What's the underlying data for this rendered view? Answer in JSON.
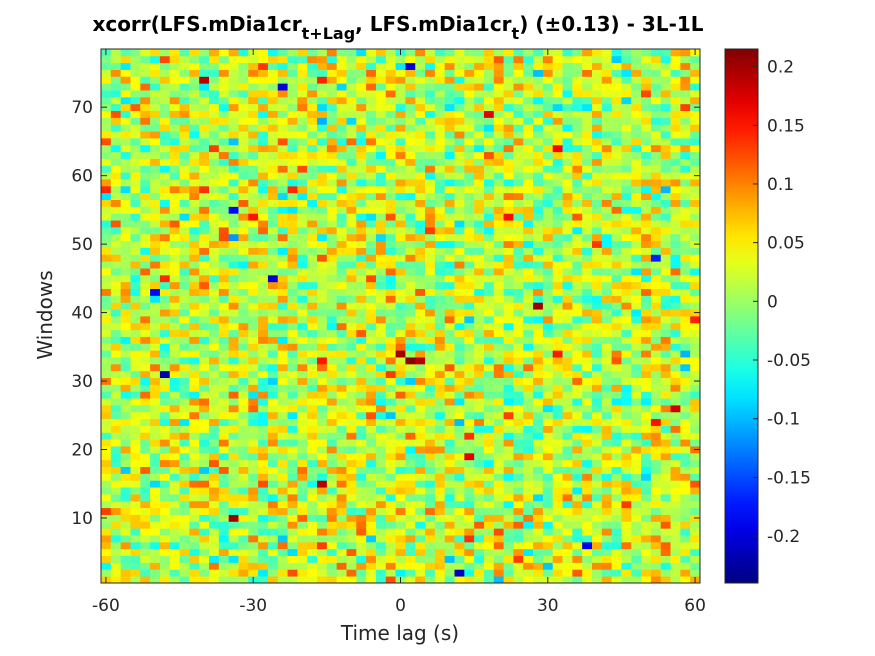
{
  "chart_data": {
    "type": "heatmap",
    "title_parts": {
      "p1": "xcorr(LFS.mDia1cr",
      "sub1": "t+Lag",
      "p2": ", LFS.mDia1cr",
      "sub2": "t",
      "p3": ")  (±0.13) - 3L-1L"
    },
    "xlabel": "Time lag (s)",
    "ylabel": "Windows",
    "x_range": [
      -61,
      61
    ],
    "y_range": [
      0.5,
      78.5
    ],
    "n_rows": 78,
    "n_cols": 61,
    "x_ticks": [
      -60,
      -30,
      0,
      30,
      60
    ],
    "x_tick_labels": [
      "-60",
      "-30",
      "0",
      "30",
      "60"
    ],
    "y_ticks": [
      10,
      20,
      30,
      40,
      50,
      60,
      70
    ],
    "y_tick_labels": [
      "10",
      "20",
      "30",
      "40",
      "50",
      "60",
      "70"
    ],
    "color_range": [
      -0.24,
      0.215
    ],
    "colormap": "jet",
    "colorbar_ticks": [
      0.2,
      0.15,
      0.1,
      0.05,
      0,
      -0.05,
      -0.1,
      -0.15,
      -0.2
    ],
    "colorbar_tick_labels": [
      "0.2",
      "0.15",
      "0.1",
      "0.05",
      "0",
      "-0.05",
      "-0.1",
      "-0.15",
      "-0.2"
    ],
    "value_mean": 0.02,
    "value_spread": 0.05,
    "highlights": [
      {
        "row": 33,
        "col": 30,
        "value": 0.2
      },
      {
        "row": 32,
        "col": 31,
        "value": 0.21
      },
      {
        "row": 32,
        "col": 32,
        "value": 0.19
      },
      {
        "row": 40,
        "col": 44,
        "value": 0.2
      },
      {
        "row": 18,
        "col": 37,
        "value": 0.17
      },
      {
        "row": 14,
        "col": 22,
        "value": 0.19
      },
      {
        "row": 73,
        "col": 10,
        "value": 0.19
      },
      {
        "row": 68,
        "col": 39,
        "value": 0.17
      },
      {
        "row": 63,
        "col": 46,
        "value": 0.16
      },
      {
        "row": 44,
        "col": 17,
        "value": -0.2
      },
      {
        "row": 42,
        "col": 5,
        "value": -0.18
      },
      {
        "row": 72,
        "col": 18,
        "value": -0.2
      },
      {
        "row": 75,
        "col": 31,
        "value": -0.2
      },
      {
        "row": 54,
        "col": 13,
        "value": -0.18
      },
      {
        "row": 30,
        "col": 6,
        "value": -0.22
      },
      {
        "row": 5,
        "col": 49,
        "value": -0.19
      },
      {
        "row": 1,
        "col": 36,
        "value": -0.21
      },
      {
        "row": 47,
        "col": 56,
        "value": -0.17
      },
      {
        "row": 9,
        "col": 13,
        "value": 0.2
      },
      {
        "row": 25,
        "col": 58,
        "value": 0.18
      }
    ]
  }
}
